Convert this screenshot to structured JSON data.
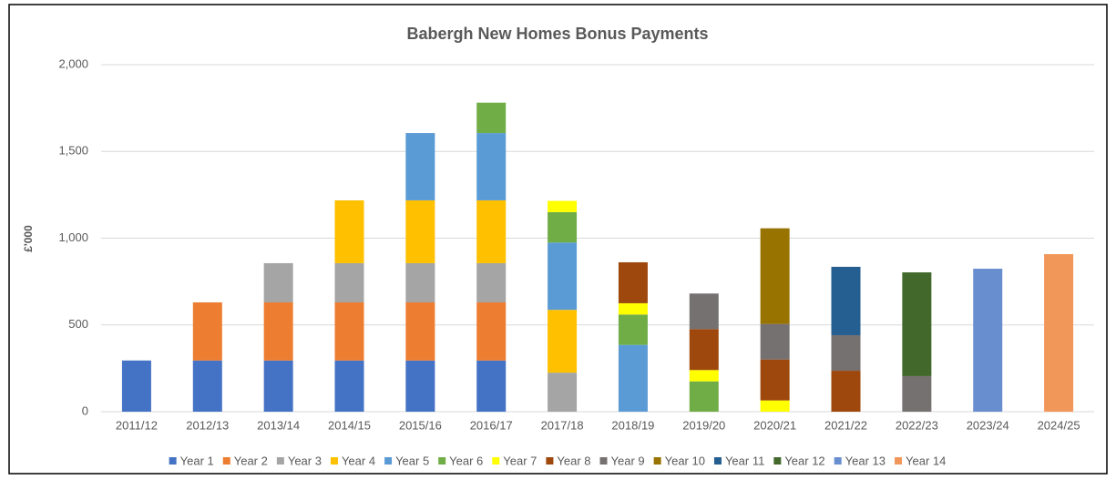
{
  "chart_data": {
    "type": "stacked_bar",
    "title": "Babergh New Homes Bonus Payments",
    "y_label": "£'000",
    "categories": [
      "2011/12",
      "2012/13",
      "2013/14",
      "2014/15",
      "2015/16",
      "2016/17",
      "2017/18",
      "2018/19",
      "2019/20",
      "2020/21",
      "2021/22",
      "2022/23",
      "2023/24",
      "2024/25"
    ],
    "ylim": [
      0,
      2000
    ],
    "yticks": [
      0,
      {
        "value": 500,
        "label": "500"
      },
      {
        "value": 1000,
        "label": "1,000"
      },
      {
        "value": 1500,
        "label": "1,500"
      },
      {
        "value": 2000,
        "label": "2,000"
      }
    ],
    "grid": true,
    "legend": "bottom",
    "series": [
      {
        "name": "Year 1",
        "color": "#4472c4",
        "values": [
          295,
          295,
          295,
          295,
          295,
          295,
          null,
          null,
          null,
          null,
          null,
          null,
          null,
          null
        ]
      },
      {
        "name": "Year 2",
        "color": "#ed7d31",
        "values": [
          null,
          335,
          335,
          335,
          335,
          335,
          null,
          null,
          null,
          null,
          null,
          null,
          null,
          null
        ]
      },
      {
        "name": "Year 3",
        "color": "#a5a5a5",
        "values": [
          null,
          null,
          226,
          226,
          226,
          226,
          225,
          null,
          null,
          null,
          null,
          null,
          null,
          null
        ]
      },
      {
        "name": "Year 4",
        "color": "#ffc000",
        "values": [
          null,
          null,
          null,
          362,
          362,
          362,
          362,
          null,
          null,
          null,
          null,
          null,
          null,
          null
        ]
      },
      {
        "name": "Year 5",
        "color": "#5b9bd5",
        "values": [
          null,
          null,
          null,
          null,
          388,
          388,
          388,
          385,
          null,
          null,
          null,
          null,
          null,
          null
        ]
      },
      {
        "name": "Year 6",
        "color": "#70ad47",
        "values": [
          null,
          null,
          null,
          null,
          null,
          175,
          175,
          175,
          175,
          null,
          null,
          null,
          null,
          null
        ]
      },
      {
        "name": "Year 7",
        "color": "#ffff00",
        "values": [
          null,
          null,
          null,
          null,
          null,
          null,
          65,
          65,
          65,
          65,
          null,
          null,
          null,
          null
        ]
      },
      {
        "name": "Year 8",
        "color": "#9e480e",
        "values": [
          null,
          null,
          null,
          null,
          null,
          null,
          null,
          236,
          236,
          236,
          236,
          null,
          null,
          null
        ]
      },
      {
        "name": "Year 9",
        "color": "#767171",
        "values": [
          null,
          null,
          null,
          null,
          null,
          null,
          null,
          null,
          205,
          205,
          205,
          205,
          null,
          null
        ]
      },
      {
        "name": "Year 10",
        "color": "#997300",
        "values": [
          null,
          null,
          null,
          null,
          null,
          null,
          null,
          null,
          null,
          551,
          null,
          null,
          null,
          null
        ]
      },
      {
        "name": "Year 11",
        "color": "#255e91",
        "values": [
          null,
          null,
          null,
          null,
          null,
          null,
          null,
          null,
          null,
          null,
          394,
          null,
          null,
          null
        ]
      },
      {
        "name": "Year 12",
        "color": "#43682b",
        "values": [
          null,
          null,
          null,
          null,
          null,
          null,
          null,
          null,
          null,
          null,
          null,
          598,
          null,
          null
        ]
      },
      {
        "name": "Year 13",
        "color": "#698ed0",
        "values": [
          null,
          null,
          null,
          null,
          null,
          null,
          null,
          null,
          null,
          null,
          null,
          null,
          824,
          null
        ]
      },
      {
        "name": "Year 14",
        "color": "#f1975a",
        "values": [
          null,
          null,
          null,
          null,
          null,
          null,
          null,
          null,
          null,
          null,
          null,
          null,
          null,
          908
        ]
      }
    ]
  }
}
